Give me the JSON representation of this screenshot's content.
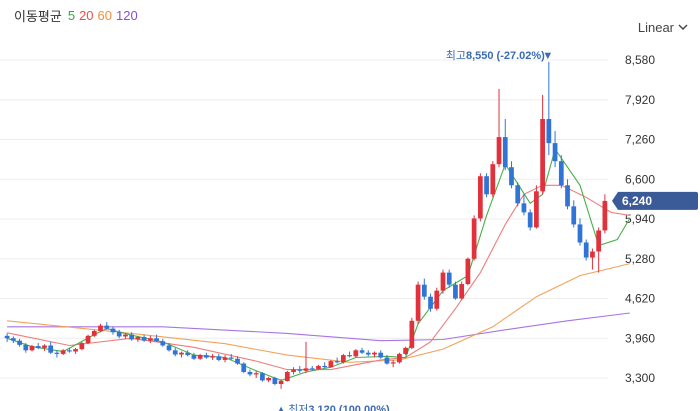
{
  "legend": {
    "label": "이동평균",
    "items": [
      {
        "text": "5",
        "color": "#2eaa3e"
      },
      {
        "text": "20",
        "color": "#e5514b"
      },
      {
        "text": "60",
        "color": "#f28c3a"
      },
      {
        "text": "120",
        "color": "#8a4fd6"
      }
    ]
  },
  "scale": {
    "label": "Linear"
  },
  "chart_data": {
    "type": "candlestick",
    "ylim": [
      3100,
      8800
    ],
    "yticks": [
      "8,580",
      "7,920",
      "7,260",
      "6,600",
      "5,940",
      "5,280",
      "4,620",
      "3,960",
      "3,300"
    ],
    "ytick_values": [
      8580,
      7920,
      7260,
      6600,
      5940,
      5280,
      4620,
      3960,
      3300
    ],
    "current": {
      "label": "6,240",
      "value": 6240,
      "color": "#3a5a98"
    },
    "high": {
      "prefix": "최고",
      "value": "8,550",
      "pct": "(-27.02%)",
      "marker": "▼"
    },
    "low": {
      "prefix": "최저",
      "value": "3,120",
      "pct": "(100.00%)",
      "marker": "▲"
    },
    "up_color": "#e0313c",
    "down_color": "#2f74d6",
    "candles": [
      [
        4000,
        4040,
        3900,
        3960
      ],
      [
        3960,
        3990,
        3880,
        3920
      ],
      [
        3920,
        3950,
        3820,
        3850
      ],
      [
        3850,
        3880,
        3720,
        3760
      ],
      [
        3760,
        3850,
        3740,
        3830
      ],
      [
        3830,
        3880,
        3780,
        3800
      ],
      [
        3800,
        3860,
        3750,
        3840
      ],
      [
        3840,
        3900,
        3700,
        3720
      ],
      [
        3720,
        3760,
        3640,
        3700
      ],
      [
        3700,
        3780,
        3680,
        3760
      ],
      [
        3760,
        3800,
        3720,
        3740
      ],
      [
        3740,
        3800,
        3700,
        3780
      ],
      [
        3780,
        3900,
        3760,
        3880
      ],
      [
        3880,
        4020,
        3860,
        4000
      ],
      [
        4000,
        4100,
        3980,
        4080
      ],
      [
        4080,
        4200,
        4060,
        4170
      ],
      [
        4170,
        4230,
        4100,
        4120
      ],
      [
        4120,
        4150,
        4020,
        4060
      ],
      [
        4060,
        4100,
        3960,
        3990
      ],
      [
        3990,
        4040,
        3950,
        4020
      ],
      [
        4020,
        4060,
        3920,
        3940
      ],
      [
        3940,
        4000,
        3900,
        3980
      ],
      [
        3980,
        4020,
        3900,
        3920
      ],
      [
        3920,
        4000,
        3880,
        3960
      ],
      [
        3960,
        4020,
        3900,
        3910
      ],
      [
        3910,
        3950,
        3820,
        3840
      ],
      [
        3840,
        3880,
        3740,
        3760
      ],
      [
        3760,
        3800,
        3660,
        3690
      ],
      [
        3690,
        3740,
        3640,
        3720
      ],
      [
        3720,
        3760,
        3660,
        3680
      ],
      [
        3680,
        3720,
        3600,
        3620
      ],
      [
        3620,
        3700,
        3600,
        3680
      ],
      [
        3680,
        3720,
        3620,
        3640
      ],
      [
        3640,
        3700,
        3600,
        3660
      ],
      [
        3660,
        3700,
        3580,
        3600
      ],
      [
        3600,
        3680,
        3560,
        3640
      ],
      [
        3640,
        3700,
        3600,
        3620
      ],
      [
        3620,
        3660,
        3520,
        3540
      ],
      [
        3540,
        3560,
        3380,
        3400
      ],
      [
        3400,
        3440,
        3330,
        3360
      ],
      [
        3360,
        3420,
        3300,
        3380
      ],
      [
        3380,
        3400,
        3240,
        3260
      ],
      [
        3260,
        3320,
        3230,
        3300
      ],
      [
        3300,
        3320,
        3180,
        3200
      ],
      [
        3200,
        3280,
        3120,
        3250
      ],
      [
        3250,
        3420,
        3240,
        3400
      ],
      [
        3400,
        3480,
        3360,
        3440
      ],
      [
        3440,
        3500,
        3380,
        3420
      ],
      [
        3420,
        3900,
        3380,
        3460
      ],
      [
        3460,
        3500,
        3420,
        3450
      ],
      [
        3450,
        3520,
        3440,
        3500
      ],
      [
        3500,
        3560,
        3460,
        3480
      ],
      [
        3480,
        3600,
        3470,
        3580
      ],
      [
        3580,
        3640,
        3540,
        3560
      ],
      [
        3560,
        3700,
        3540,
        3680
      ],
      [
        3680,
        3740,
        3640,
        3660
      ],
      [
        3660,
        3780,
        3640,
        3760
      ],
      [
        3760,
        3800,
        3700,
        3720
      ],
      [
        3720,
        3760,
        3660,
        3690
      ],
      [
        3690,
        3740,
        3640,
        3720
      ],
      [
        3720,
        3760,
        3620,
        3640
      ],
      [
        3640,
        3680,
        3520,
        3540
      ],
      [
        3540,
        3600,
        3480,
        3560
      ],
      [
        3560,
        3720,
        3540,
        3700
      ],
      [
        3700,
        3820,
        3680,
        3800
      ],
      [
        3800,
        4300,
        3780,
        4250
      ],
      [
        4250,
        4900,
        4200,
        4850
      ],
      [
        4850,
        4950,
        4600,
        4650
      ],
      [
        4650,
        4700,
        4400,
        4450
      ],
      [
        4450,
        4800,
        4420,
        4750
      ],
      [
        4750,
        5100,
        4700,
        5050
      ],
      [
        5050,
        5100,
        4800,
        4850
      ],
      [
        4850,
        4900,
        4600,
        4620
      ],
      [
        4620,
        4900,
        4600,
        4860
      ],
      [
        4860,
        5300,
        4840,
        5280
      ],
      [
        5280,
        6000,
        5250,
        5950
      ],
      [
        5950,
        6700,
        5900,
        6650
      ],
      [
        6650,
        6700,
        6300,
        6350
      ],
      [
        6350,
        6900,
        6300,
        6850
      ],
      [
        6850,
        8100,
        6800,
        7300
      ],
      [
        7300,
        7600,
        6750,
        6800
      ],
      [
        6800,
        6900,
        6450,
        6500
      ],
      [
        6500,
        6550,
        6150,
        6200
      ],
      [
        6200,
        6350,
        6000,
        6050
      ],
      [
        6050,
        6100,
        5750,
        5800
      ],
      [
        5800,
        6500,
        5780,
        6400
      ],
      [
        6400,
        8000,
        6350,
        7600
      ],
      [
        7600,
        8550,
        7000,
        7200
      ],
      [
        7200,
        7400,
        6800,
        6900
      ],
      [
        6900,
        7000,
        6450,
        6500
      ],
      [
        6500,
        6600,
        6100,
        6150
      ],
      [
        6150,
        6250,
        5800,
        5850
      ],
      [
        5850,
        5950,
        5500,
        5550
      ],
      [
        5550,
        5600,
        5250,
        5300
      ],
      [
        5300,
        5450,
        5100,
        5400
      ],
      [
        5400,
        5800,
        5050,
        5750
      ],
      [
        5750,
        6350,
        5700,
        6240
      ]
    ],
    "ma": {
      "ma5": [
        [
          0,
          3960
        ],
        [
          4,
          3820
        ],
        [
          9,
          3740
        ],
        [
          14,
          4020
        ],
        [
          16,
          4120
        ],
        [
          20,
          4010
        ],
        [
          25,
          3900
        ],
        [
          30,
          3680
        ],
        [
          35,
          3640
        ],
        [
          40,
          3420
        ],
        [
          44,
          3260
        ],
        [
          48,
          3400
        ],
        [
          52,
          3480
        ],
        [
          56,
          3640
        ],
        [
          61,
          3660
        ],
        [
          64,
          3640
        ],
        [
          66,
          4200
        ],
        [
          70,
          4750
        ],
        [
          74,
          5000
        ],
        [
          77,
          6000
        ],
        [
          80,
          6850
        ],
        [
          84,
          6200
        ],
        [
          86,
          6350
        ],
        [
          88,
          7100
        ],
        [
          92,
          6500
        ],
        [
          95,
          5500
        ],
        [
          98,
          5600
        ],
        [
          100,
          5950
        ]
      ],
      "ma20": [
        [
          0,
          4050
        ],
        [
          10,
          3840
        ],
        [
          20,
          3960
        ],
        [
          30,
          3810
        ],
        [
          40,
          3580
        ],
        [
          45,
          3440
        ],
        [
          52,
          3440
        ],
        [
          60,
          3600
        ],
        [
          64,
          3640
        ],
        [
          68,
          3900
        ],
        [
          72,
          4450
        ],
        [
          76,
          5050
        ],
        [
          80,
          5850
        ],
        [
          83,
          6350
        ],
        [
          86,
          6500
        ],
        [
          89,
          6500
        ],
        [
          93,
          6300
        ],
        [
          97,
          6050
        ],
        [
          100,
          6000
        ]
      ],
      "ma60": [
        [
          0,
          4250
        ],
        [
          20,
          4040
        ],
        [
          35,
          3870
        ],
        [
          45,
          3680
        ],
        [
          55,
          3560
        ],
        [
          63,
          3600
        ],
        [
          70,
          3780
        ],
        [
          78,
          4150
        ],
        [
          85,
          4650
        ],
        [
          92,
          5000
        ],
        [
          100,
          5200
        ]
      ],
      "ma120": [
        [
          0,
          4150
        ],
        [
          25,
          4150
        ],
        [
          45,
          4040
        ],
        [
          60,
          3920
        ],
        [
          70,
          3940
        ],
        [
          80,
          4100
        ],
        [
          90,
          4250
        ],
        [
          100,
          4380
        ]
      ]
    }
  }
}
